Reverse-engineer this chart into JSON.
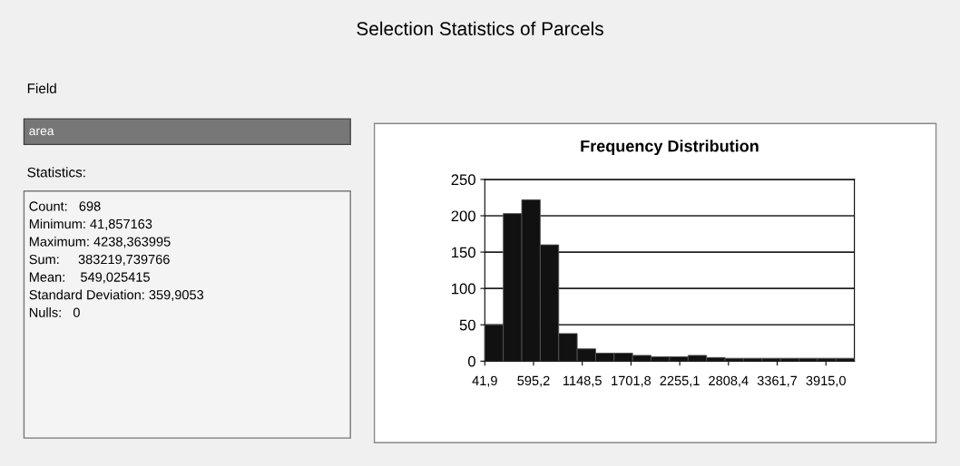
{
  "chart_data": {
    "type": "histogram",
    "title": "Frequency Distribution",
    "bins": [
      41.9,
      251.7,
      461.5,
      671.4,
      881.2,
      1091.0,
      1300.8,
      1510.6,
      1720.5,
      1930.3,
      2140.1,
      2349.9,
      2559.7,
      2769.6,
      2979.4,
      3189.2,
      3399.0,
      3608.8,
      3818.7,
      4028.5,
      4238.4
    ],
    "values": [
      50,
      203,
      222,
      160,
      38,
      17,
      11,
      11,
      8,
      6,
      6,
      8,
      5,
      4,
      4,
      4,
      4,
      4,
      4,
      4
    ],
    "color": "#111111",
    "xlim": [
      41.9,
      4238.4
    ],
    "xticks": [
      {
        "value": 41.9,
        "label": "41,9"
      },
      {
        "value": 595.2,
        "label": "595,2"
      },
      {
        "value": 1148.5,
        "label": "1148,5"
      },
      {
        "value": 1701.8,
        "label": "1701,8"
      },
      {
        "value": 2255.1,
        "label": "2255,1"
      },
      {
        "value": 2808.4,
        "label": "2808,4"
      },
      {
        "value": 3361.7,
        "label": "3361,7"
      },
      {
        "value": 3915.0,
        "label": "3915,0"
      }
    ],
    "ylim": [
      0,
      250
    ],
    "yticks": [
      0,
      50,
      100,
      150,
      200,
      250
    ],
    "grid": "y",
    "annotations": [
      "Selection Statistics of Parcels",
      "Field",
      "area",
      "Statistics:",
      "Count:   698",
      "Minimum: 41,857163",
      "Maximum: 4238,363995",
      "Sum:     383219,739766",
      "Mean:    549,025415",
      "Standard Deviation: 359,9053",
      "Nulls:   0"
    ]
  }
}
